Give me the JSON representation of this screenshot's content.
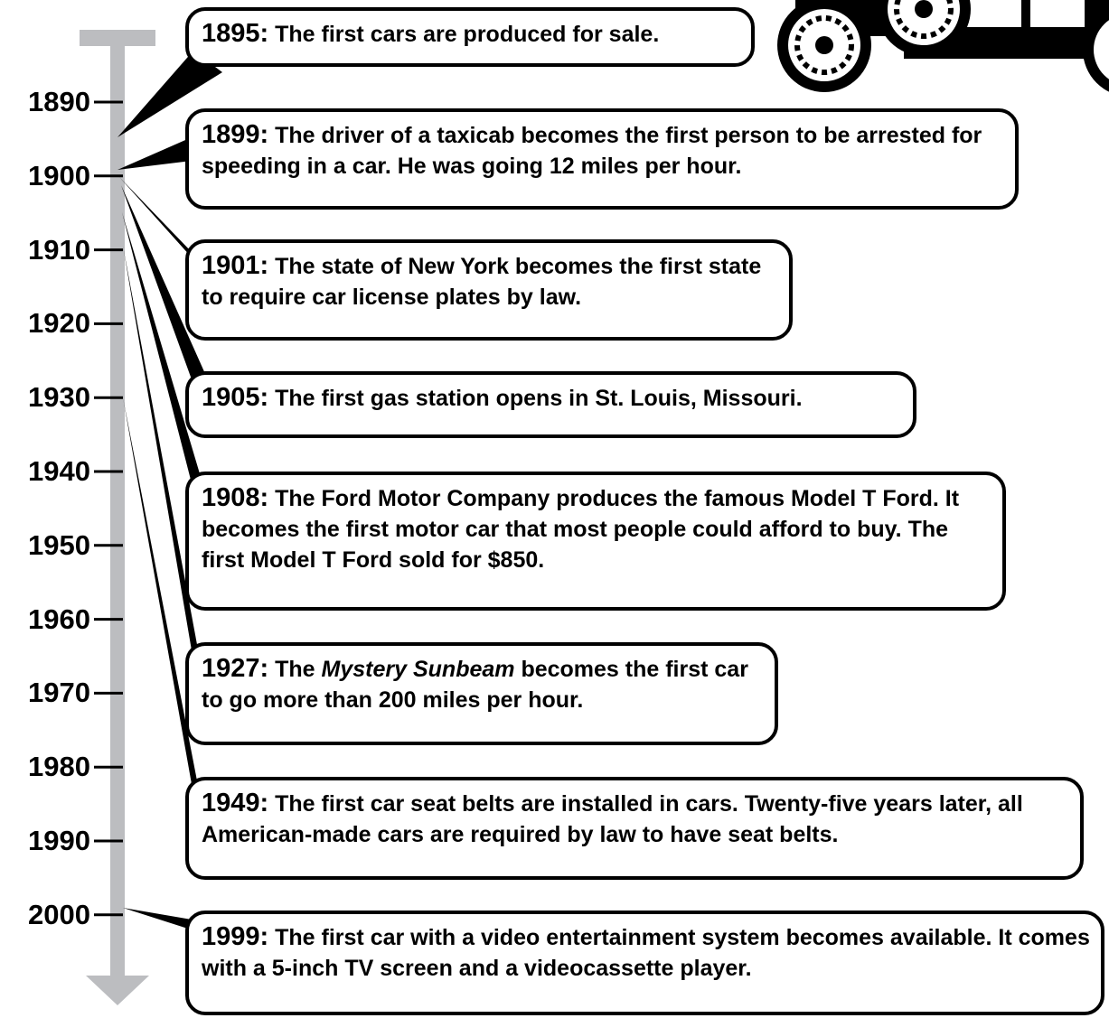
{
  "timeline": {
    "ticks": [
      "1890",
      "1900",
      "1910",
      "1920",
      "1930",
      "1940",
      "1950",
      "1960",
      "1970",
      "1980",
      "1990",
      "2000"
    ],
    "events": [
      {
        "year": "1895:",
        "text": "The first cars are produced for sale."
      },
      {
        "year": "1899:",
        "text": "The driver of a taxicab becomes the first person to be arrested for speeding in a car. He was going 12 miles per hour."
      },
      {
        "year": "1901:",
        "text": "The state of New York becomes the first state to require car license plates by law."
      },
      {
        "year": "1905:",
        "text": "The first gas station opens in St. Louis, Missouri."
      },
      {
        "year": "1908:",
        "text": "The Ford Motor Company produces the famous Model T Ford. It becomes the first motor car that most people could afford to buy. The first Model T Ford sold for $850."
      },
      {
        "year": "1927:",
        "text_before": "The",
        "emphasis": "Mystery Sunbeam",
        "text_after": "becomes the first car to go more than 200 miles per hour."
      },
      {
        "year": "1949:",
        "text": "The first car seat belts are installed in cars. Twenty-five years later, all American-made cars are required by law to have seat belts."
      },
      {
        "year": "1999:",
        "text": "The first car with a video entertainment system becomes available. It comes with a 5-inch TV screen and a videocassette player."
      }
    ]
  }
}
